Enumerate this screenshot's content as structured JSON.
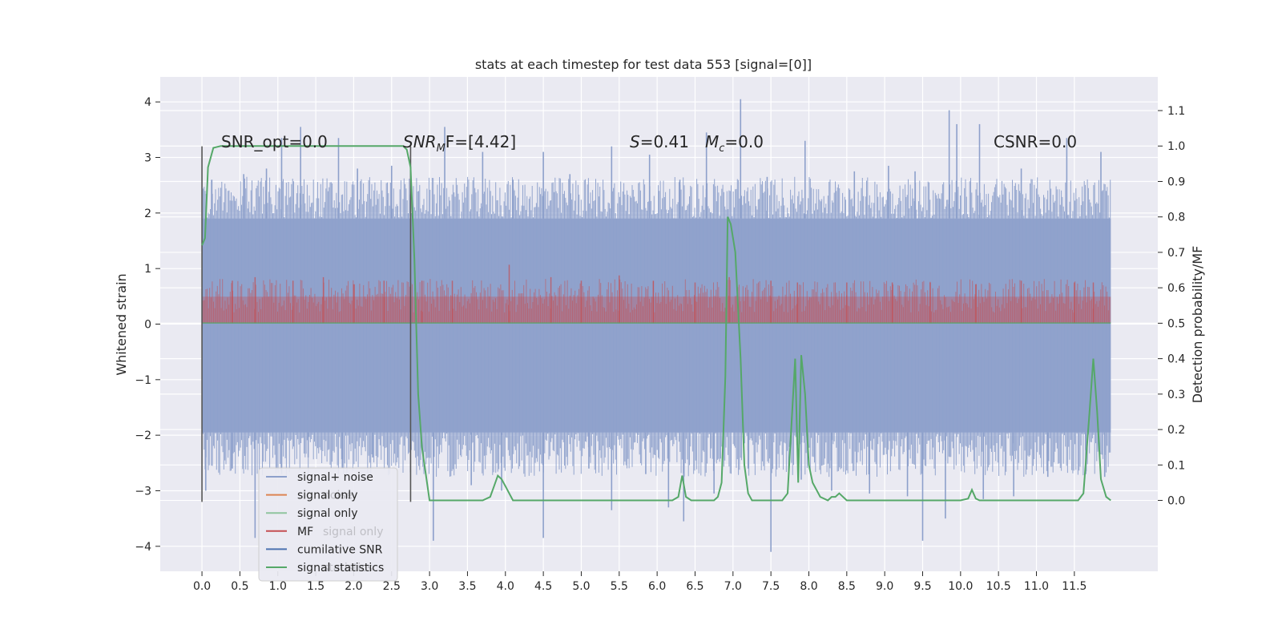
{
  "chart_data": {
    "type": "line",
    "title": "stats at each timestep for test data 553 [signal=[0]]",
    "ylabel_left": "Whitened strain",
    "ylabel_right": "Detection probability/MF",
    "xlim": [
      -0.55,
      12.6
    ],
    "ylim_left": [
      -4.45,
      4.45
    ],
    "ylim_right": [
      -0.2,
      1.195
    ],
    "x_ticks": [
      0.0,
      0.5,
      1.0,
      1.5,
      2.0,
      2.5,
      3.0,
      3.5,
      4.0,
      4.5,
      5.0,
      5.5,
      6.0,
      6.5,
      7.0,
      7.5,
      8.0,
      8.5,
      9.0,
      9.5,
      10.0,
      10.5,
      11.0,
      11.5
    ],
    "x_tick_labels": [
      "0.0",
      "0.5",
      "1.0",
      "1.5",
      "2.0",
      "2.5",
      "3.0",
      "3.5",
      "4.0",
      "4.5",
      "5.0",
      "5.5",
      "6.0",
      "6.5",
      "7.0",
      "7.5",
      "8.0",
      "8.5",
      "9.0",
      "9.5",
      "10.0",
      "10.5",
      "11.0",
      "11.5"
    ],
    "y_left_ticks": [
      -4,
      -3,
      -2,
      -1,
      0,
      1,
      2,
      3,
      4
    ],
    "y_left_tick_labels": [
      "−4",
      "−3",
      "−2",
      "−1",
      "0",
      "1",
      "2",
      "3",
      "4"
    ],
    "y_right_ticks": [
      0.0,
      0.1,
      0.2,
      0.3,
      0.4,
      0.5,
      0.6,
      0.7,
      0.8,
      0.9,
      1.0,
      1.1
    ],
    "y_right_tick_labels": [
      "0.0",
      "0.1",
      "0.2",
      "0.3",
      "0.4",
      "0.5",
      "0.6",
      "0.7",
      "0.8",
      "0.9",
      "1.0",
      "1.1"
    ],
    "grid": true,
    "annotations": {
      "snr_opt": "SNR_opt=0.0",
      "snr_mf_base": "SNR",
      "snr_mf_sub": "M",
      "snr_mf_rest": "F=[4.42]",
      "s_var": "S",
      "s_val": "=0.41",
      "mc_var": "M",
      "mc_sub": "c",
      "mc_val": "=0.0",
      "csnr": "CSNR=0.0"
    },
    "colors": {
      "background": "#eaeaf2",
      "grid": "#ffffff",
      "noise": "#8da0cb",
      "signal_orange": "#dd8452",
      "signal_green": "#55a868",
      "mf": "#c44e52",
      "cumulative": "#4c72b0",
      "stats": "#55a868",
      "vline": "#555555"
    },
    "legend": {
      "placement": "lower-left",
      "entries": [
        {
          "label": "signal+ noise",
          "color": "#8da0cb",
          "ghost": ""
        },
        {
          "label": "signal only",
          "color": "#dd8452",
          "ghost": "noise"
        },
        {
          "label": "signal only",
          "color": "#8fc49e",
          "ghost": ""
        },
        {
          "label": "MF",
          "color": "#c44e52",
          "ghost": "signal only"
        },
        {
          "label": "cumilative SNR",
          "color": "#4c72b0",
          "ghost": ""
        },
        {
          "label": "signal statistics",
          "color": "#55a868",
          "ghost": "statistics"
        }
      ]
    },
    "vertical_lines": {
      "x": [
        0.0,
        2.75
      ],
      "y_range": [
        -3.2,
        3.2
      ]
    },
    "series": [
      {
        "name": "signal+ noise",
        "axis": "left",
        "x_range": [
          0.0,
          11.98
        ],
        "band_pos": 1.9,
        "band_neg": -1.95,
        "spikes": [
          [
            0.13,
            2.6
          ],
          [
            0.55,
            2.7
          ],
          [
            0.85,
            2.8
          ],
          [
            1.05,
            3.35
          ],
          [
            1.3,
            3.55
          ],
          [
            1.8,
            3.35
          ],
          [
            2.05,
            2.8
          ],
          [
            2.5,
            2.85
          ],
          [
            3.2,
            3.55
          ],
          [
            3.7,
            3.1
          ],
          [
            4.1,
            2.6
          ],
          [
            4.5,
            3.1
          ],
          [
            4.85,
            2.7
          ],
          [
            5.4,
            3.2
          ],
          [
            5.9,
            3.05
          ],
          [
            6.3,
            2.6
          ],
          [
            6.65,
            3.45
          ],
          [
            7.1,
            4.05
          ],
          [
            7.45,
            2.65
          ],
          [
            7.95,
            3.3
          ],
          [
            8.6,
            2.75
          ],
          [
            9.05,
            2.85
          ],
          [
            9.4,
            2.75
          ],
          [
            9.85,
            3.85
          ],
          [
            9.95,
            3.6
          ],
          [
            10.25,
            3.6
          ],
          [
            10.8,
            2.8
          ],
          [
            11.4,
            3.35
          ],
          [
            11.85,
            3.1
          ],
          [
            0.05,
            -3.0
          ],
          [
            0.4,
            -2.6
          ],
          [
            0.7,
            -3.85
          ],
          [
            1.05,
            -2.7
          ],
          [
            1.4,
            -2.4
          ],
          [
            1.85,
            -2.6
          ],
          [
            2.25,
            -2.4
          ],
          [
            3.05,
            -3.9
          ],
          [
            3.55,
            -2.9
          ],
          [
            3.95,
            -3.0
          ],
          [
            4.5,
            -3.85
          ],
          [
            5.1,
            -2.6
          ],
          [
            5.4,
            -3.35
          ],
          [
            5.85,
            -2.7
          ],
          [
            6.15,
            -3.3
          ],
          [
            6.35,
            -3.55
          ],
          [
            6.75,
            -3.05
          ],
          [
            7.2,
            -2.6
          ],
          [
            7.5,
            -4.1
          ],
          [
            7.9,
            -2.8
          ],
          [
            8.3,
            -3.0
          ],
          [
            8.8,
            -3.05
          ],
          [
            9.3,
            -3.1
          ],
          [
            9.5,
            -3.9
          ],
          [
            9.8,
            -3.5
          ],
          [
            10.3,
            -3.15
          ],
          [
            10.7,
            -3.1
          ],
          [
            11.15,
            -2.75
          ],
          [
            11.65,
            -2.7
          ],
          [
            11.9,
            -2.75
          ]
        ]
      },
      {
        "name": "MF",
        "axis": "right",
        "x_range": [
          0.0,
          11.98
        ],
        "band_low": 0.5,
        "band_high": 0.575,
        "spikes": [
          [
            0.4,
            0.62
          ],
          [
            0.7,
            0.63
          ],
          [
            1.2,
            0.62
          ],
          [
            1.6,
            0.63
          ],
          [
            2.0,
            0.61
          ],
          [
            2.4,
            0.62
          ],
          [
            2.9,
            0.62
          ],
          [
            3.3,
            0.62
          ],
          [
            4.05,
            0.665
          ],
          [
            4.6,
            0.63
          ],
          [
            5.0,
            0.62
          ],
          [
            5.5,
            0.635
          ],
          [
            5.95,
            0.62
          ],
          [
            6.5,
            0.615
          ],
          [
            6.95,
            0.63
          ],
          [
            7.5,
            0.62
          ],
          [
            7.85,
            0.615
          ],
          [
            8.5,
            0.615
          ],
          [
            9.1,
            0.615
          ],
          [
            9.6,
            0.615
          ],
          [
            10.2,
            0.61
          ],
          [
            10.8,
            0.62
          ],
          [
            11.5,
            0.615
          ],
          [
            11.75,
            0.615
          ]
        ]
      },
      {
        "name": "signal only",
        "axis": "left",
        "x": [
          0.0,
          11.98
        ],
        "y": [
          0.02,
          0.02
        ]
      },
      {
        "name": "signal statistics",
        "axis": "right",
        "x": [
          0.0,
          0.04,
          0.08,
          0.15,
          0.25,
          0.4,
          1.0,
          1.5,
          2.0,
          2.5,
          2.65,
          2.7,
          2.75,
          2.8,
          2.85,
          2.9,
          3.0,
          3.2,
          3.4,
          3.6,
          3.7,
          3.8,
          3.85,
          3.9,
          3.95,
          4.0,
          4.1,
          4.2,
          4.4,
          4.6,
          5.0,
          5.5,
          6.0,
          6.2,
          6.28,
          6.33,
          6.38,
          6.45,
          6.55,
          6.65,
          6.75,
          6.8,
          6.85,
          6.9,
          6.93,
          6.97,
          7.03,
          7.1,
          7.15,
          7.2,
          7.25,
          7.35,
          7.5,
          7.65,
          7.72,
          7.78,
          7.82,
          7.86,
          7.9,
          7.95,
          8.0,
          8.05,
          8.1,
          8.15,
          8.25,
          8.3,
          8.35,
          8.4,
          8.5,
          8.7,
          9.0,
          9.5,
          10.0,
          10.1,
          10.15,
          10.2,
          10.25,
          10.4,
          10.8,
          11.2,
          11.55,
          11.62,
          11.7,
          11.75,
          11.8,
          11.85,
          11.92,
          11.98
        ],
        "y": [
          0.72,
          0.74,
          0.94,
          0.995,
          1.0,
          1.0,
          1.0,
          1.0,
          1.0,
          1.0,
          1.0,
          0.99,
          0.94,
          0.68,
          0.3,
          0.15,
          0.0,
          0.0,
          0.0,
          0.0,
          0.0,
          0.01,
          0.04,
          0.07,
          0.06,
          0.04,
          0.0,
          0.0,
          0.0,
          0.0,
          0.0,
          0.0,
          0.0,
          0.0,
          0.01,
          0.07,
          0.01,
          0.0,
          0.0,
          0.0,
          0.0,
          0.01,
          0.05,
          0.35,
          0.8,
          0.78,
          0.7,
          0.4,
          0.1,
          0.02,
          0.0,
          0.0,
          0.0,
          0.0,
          0.02,
          0.25,
          0.4,
          0.05,
          0.41,
          0.3,
          0.1,
          0.05,
          0.03,
          0.01,
          0.0,
          0.01,
          0.01,
          0.02,
          0.0,
          0.0,
          0.0,
          0.0,
          0.0,
          0.005,
          0.03,
          0.005,
          0.0,
          0.0,
          0.0,
          0.0,
          0.0,
          0.02,
          0.25,
          0.4,
          0.25,
          0.06,
          0.01,
          0.0
        ]
      }
    ]
  }
}
